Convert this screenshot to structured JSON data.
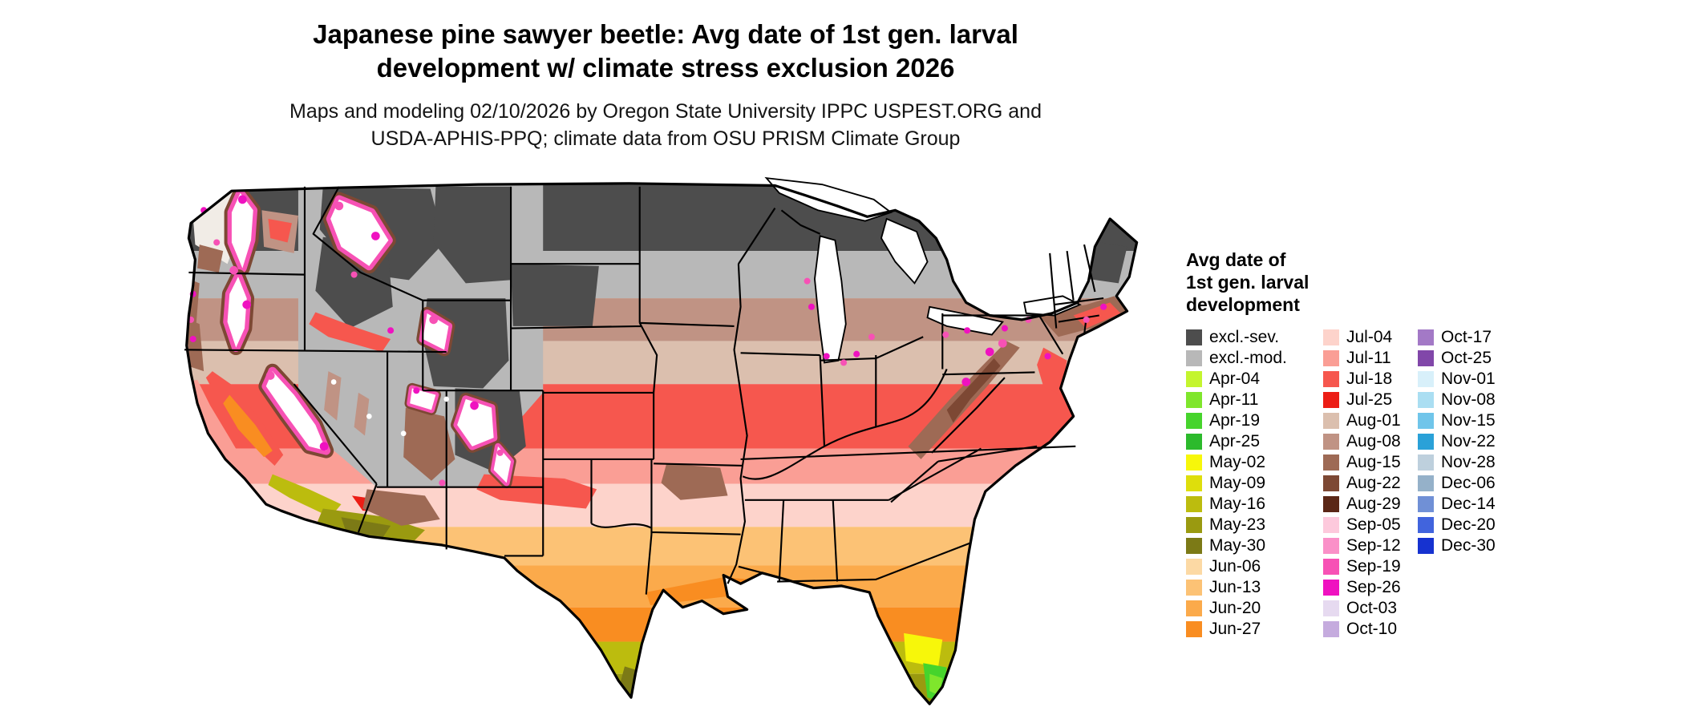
{
  "title": {
    "line1": "Japanese pine sawyer beetle: Avg date of 1st gen. larval",
    "line2": "development w/ climate stress exclusion 2026"
  },
  "subtitle": {
    "line1": "Maps and modeling 02/10/2026 by Oregon State University IPPC USPEST.ORG and",
    "line2": "USDA-APHIS-PPQ; climate data from OSU PRISM Climate Group"
  },
  "legend": {
    "title_lines": [
      "Avg date of",
      "1st gen. larval",
      "development"
    ],
    "columns": [
      {
        "entries": [
          {
            "label": "excl.-sev.",
            "color": "#4d4d4d"
          },
          {
            "label": "excl.-mod.",
            "color": "#b8b8b8"
          },
          {
            "label": "Apr-04",
            "color": "#c4f52e"
          },
          {
            "label": "Apr-11",
            "color": "#7fe62c"
          },
          {
            "label": "Apr-19",
            "color": "#46d42c"
          },
          {
            "label": "Apr-25",
            "color": "#2cba2c"
          },
          {
            "label": "May-02",
            "color": "#f7f70a"
          },
          {
            "label": "May-09",
            "color": "#dede0c"
          },
          {
            "label": "May-16",
            "color": "#bcbc0e"
          },
          {
            "label": "May-23",
            "color": "#9a9a10"
          },
          {
            "label": "May-30",
            "color": "#7c7a16"
          },
          {
            "label": "Jun-06",
            "color": "#fcd9a4"
          },
          {
            "label": "Jun-13",
            "color": "#fcc275"
          },
          {
            "label": "Jun-20",
            "color": "#fbaa4b"
          },
          {
            "label": "Jun-27",
            "color": "#f98d21"
          }
        ]
      },
      {
        "entries": [
          {
            "label": "Jul-04",
            "color": "#fdd3cb"
          },
          {
            "label": "Jul-11",
            "color": "#fa9e95"
          },
          {
            "label": "Jul-18",
            "color": "#f6574e"
          },
          {
            "label": "Jul-25",
            "color": "#ec1d15"
          },
          {
            "label": "Aug-01",
            "color": "#dbbfae"
          },
          {
            "label": "Aug-08",
            "color": "#c09384"
          },
          {
            "label": "Aug-15",
            "color": "#9e6a55"
          },
          {
            "label": "Aug-22",
            "color": "#7d4834"
          },
          {
            "label": "Aug-29",
            "color": "#5b2716"
          },
          {
            "label": "Sep-05",
            "color": "#fdc9dc"
          },
          {
            "label": "Sep-12",
            "color": "#fa90c8"
          },
          {
            "label": "Sep-19",
            "color": "#f751b5"
          },
          {
            "label": "Sep-26",
            "color": "#ef12c0"
          },
          {
            "label": "Oct-03",
            "color": "#e6daf0"
          },
          {
            "label": "Oct-10",
            "color": "#c5abde"
          }
        ]
      },
      {
        "entries": [
          {
            "label": "Oct-17",
            "color": "#a379c6"
          },
          {
            "label": "Oct-25",
            "color": "#8147a9"
          },
          {
            "label": "Nov-01",
            "color": "#d8f0fa"
          },
          {
            "label": "Nov-08",
            "color": "#aadef2"
          },
          {
            "label": "Nov-15",
            "color": "#70c5ea"
          },
          {
            "label": "Nov-22",
            "color": "#2aa1d8"
          },
          {
            "label": "Nov-28",
            "color": "#bed0dd"
          },
          {
            "label": "Dec-06",
            "color": "#95b1c9"
          },
          {
            "label": "Dec-14",
            "color": "#7090d6"
          },
          {
            "label": "Dec-20",
            "color": "#4164dd"
          },
          {
            "label": "Dec-30",
            "color": "#1632d0"
          }
        ]
      }
    ]
  },
  "palette": {
    "white": "#ffffff",
    "off_white": "#f1ece6",
    "border_black": "#000000"
  }
}
